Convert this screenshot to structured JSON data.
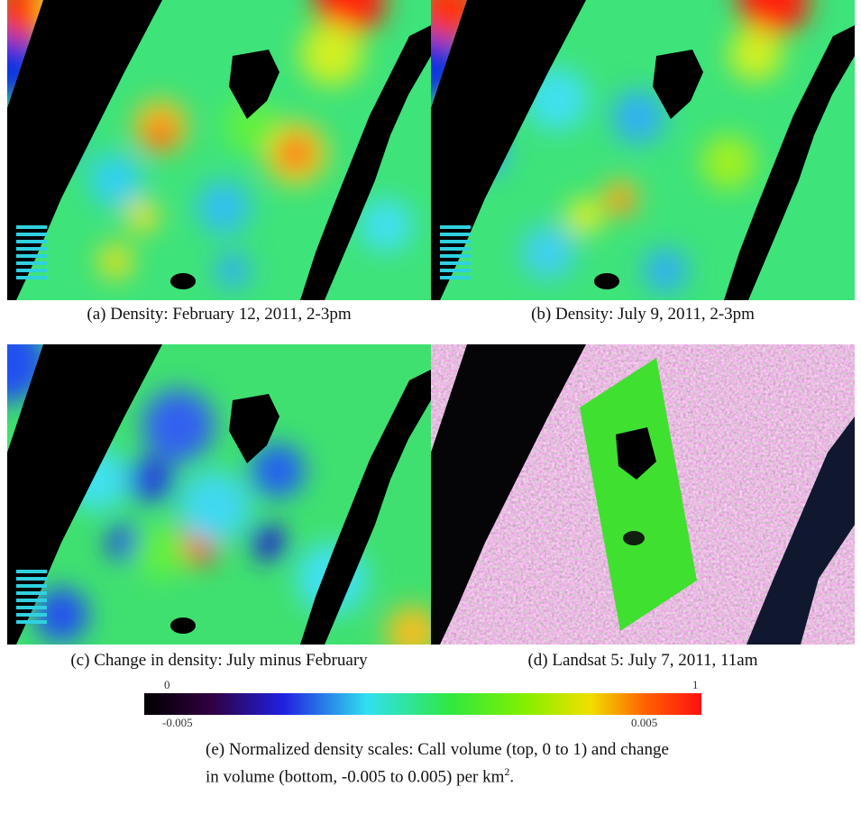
{
  "panels": [
    {
      "caption": "(a) Density: February 12, 2011, 2-3pm"
    },
    {
      "caption": "(b) Density: July 9, 2011, 2-3pm"
    },
    {
      "caption": "(c) Change in density: July minus February"
    },
    {
      "caption": "(d) Landsat 5: July 7, 2011, 11am"
    }
  ],
  "colorbar": {
    "top_labels": [
      "0",
      "1"
    ],
    "bottom_labels": [
      "-0.005",
      "0.005"
    ],
    "caption": "(e) Normalized density scales: Call volume (top, 0 to 1) and change in volume (bottom, -0.005 to 0.005) per km",
    "caption_superscript": "2",
    "caption_end": "."
  }
}
